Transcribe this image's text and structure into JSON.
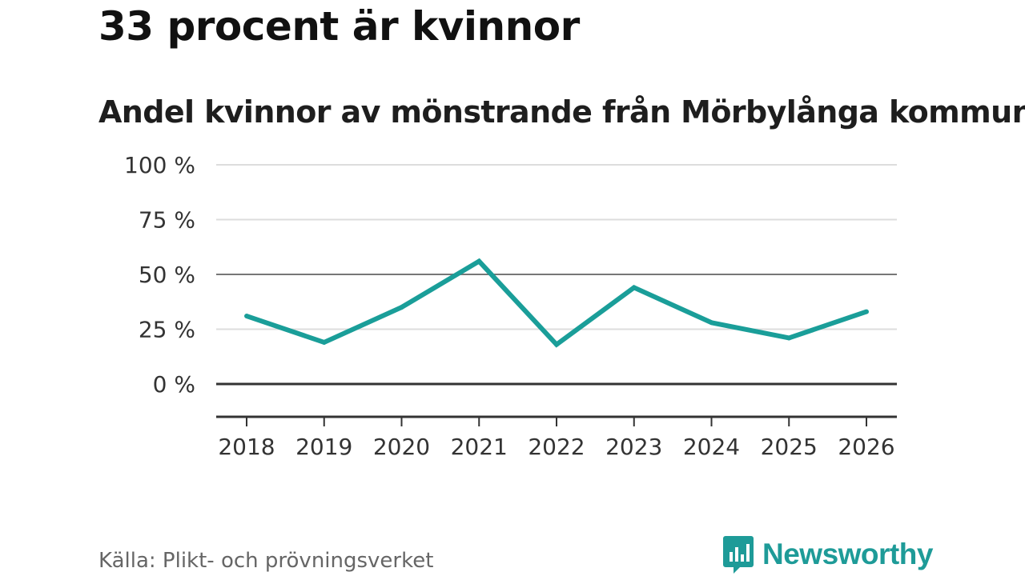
{
  "headline": "33 procent är kvinnor",
  "source": "Källa: Plikt- och prövningsverket",
  "brand": {
    "name": "Newsworthy"
  },
  "colors": {
    "line": "#1a9e99",
    "grid": "#dddddd",
    "midline": "#777777",
    "zeroline": "#333333",
    "brand": "#1e9b98"
  },
  "chart_data": {
    "type": "line",
    "title": "Andel kvinnor av mönstrande från Mörbylånga kommun",
    "xlabel": "",
    "ylabel": "",
    "categories": [
      "2018",
      "2019",
      "2020",
      "2021",
      "2022",
      "2023",
      "2024",
      "2025",
      "2026"
    ],
    "series": [
      {
        "name": "Andel kvinnor",
        "values": [
          31,
          19,
          35,
          56,
          18,
          44,
          28,
          21,
          33
        ]
      }
    ],
    "ylim": [
      -15,
      100
    ],
    "yticks": [
      100,
      75,
      50,
      25,
      0
    ],
    "ytick_labels": [
      "100 %",
      "75 %",
      "50 %",
      "25 %",
      "0 %"
    ],
    "grid": true,
    "legend": "none"
  }
}
